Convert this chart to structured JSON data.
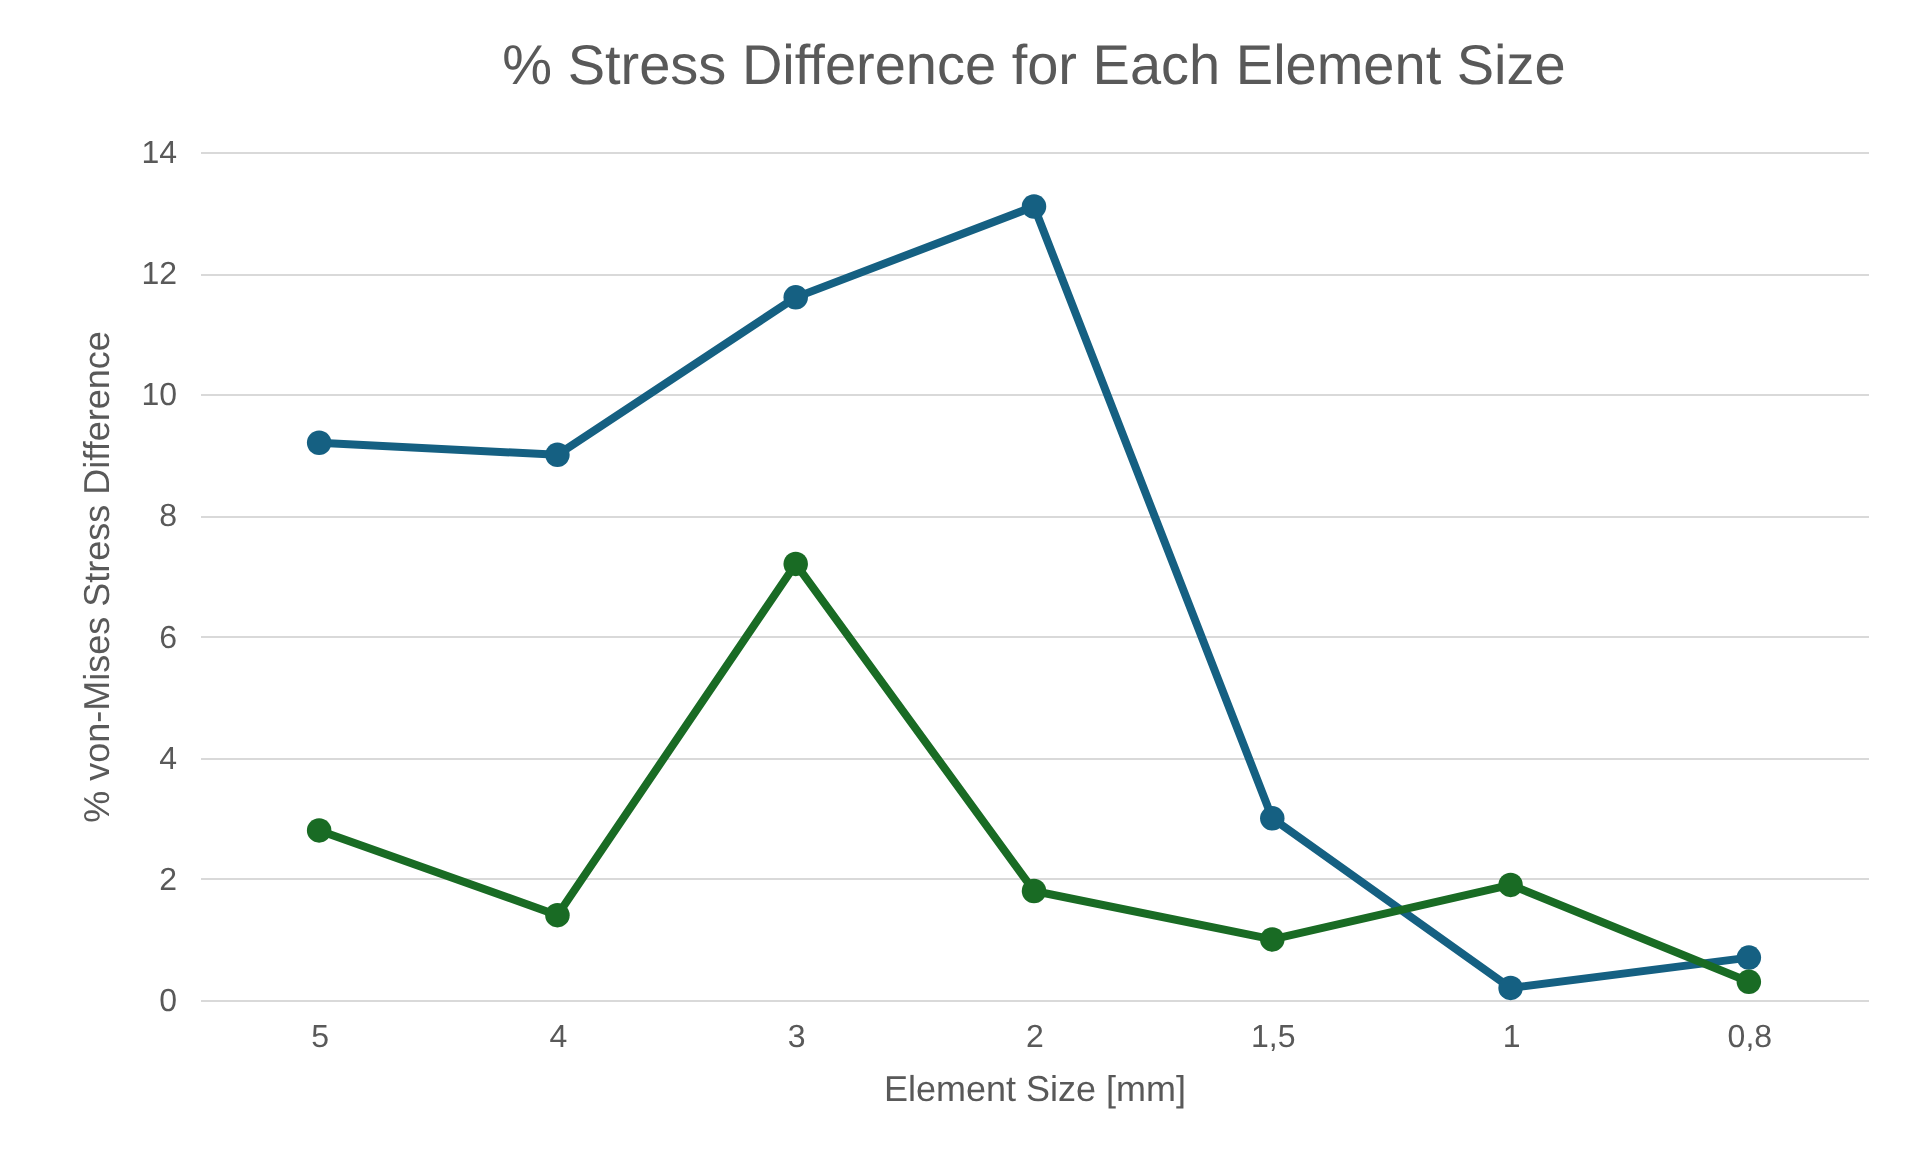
{
  "chart_data": {
    "type": "line",
    "title": "% Stress Difference for Each Element Size",
    "xlabel": "Element Size [mm]",
    "ylabel": "% von-Mises Stress Difference",
    "categories": [
      "5",
      "4",
      "3",
      "2",
      "1,5",
      "1",
      "0,8"
    ],
    "series": [
      {
        "color": "#156082",
        "values": [
          9.2,
          9.0,
          11.6,
          13.1,
          3.0,
          0.2,
          0.7
        ]
      },
      {
        "color": "#196b24",
        "values": [
          2.8,
          1.4,
          7.2,
          1.8,
          1.0,
          1.9,
          0.3
        ]
      }
    ],
    "ylim": [
      0,
      14
    ],
    "yticks": [
      0,
      2,
      4,
      6,
      8,
      10,
      12,
      14
    ],
    "grid": "y",
    "marker": "circle",
    "line_style": "solid",
    "legend": false
  }
}
